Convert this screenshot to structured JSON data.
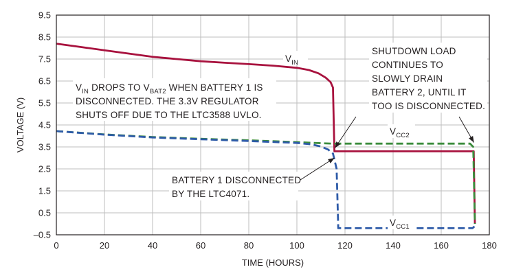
{
  "chart_data": {
    "type": "line",
    "xlabel": "TIME (HOURS)",
    "ylabel": "VOLTAGE (V)",
    "xlim": [
      0,
      180
    ],
    "ylim": [
      -0.5,
      9.5
    ],
    "x_ticks": [
      0,
      20,
      40,
      60,
      80,
      100,
      120,
      140,
      160,
      180
    ],
    "y_ticks": [
      -0.5,
      0.5,
      1.5,
      2.5,
      3.5,
      4.5,
      5.5,
      6.5,
      7.5,
      8.5,
      9.5
    ],
    "y_tick_labels": [
      "–0.5",
      "0.5",
      "1.5",
      "2.5",
      "3.5",
      "4.5",
      "5.5",
      "6.5",
      "7.5",
      "8.5",
      "9.5"
    ],
    "grid": true,
    "series": [
      {
        "name": "VIN",
        "label_main": "V",
        "label_sub": "IN",
        "color": "#a8123e",
        "style": "solid",
        "points": [
          [
            0,
            8.2
          ],
          [
            10,
            8.05
          ],
          [
            20,
            7.9
          ],
          [
            30,
            7.75
          ],
          [
            40,
            7.6
          ],
          [
            50,
            7.5
          ],
          [
            60,
            7.4
          ],
          [
            70,
            7.33
          ],
          [
            80,
            7.27
          ],
          [
            90,
            7.2
          ],
          [
            100,
            7.1
          ],
          [
            105,
            7.0
          ],
          [
            109,
            6.85
          ],
          [
            112,
            6.65
          ],
          [
            114,
            6.45
          ],
          [
            115,
            6.2
          ],
          [
            115.6,
            3.3
          ],
          [
            116,
            3.3
          ],
          [
            130,
            3.3
          ],
          [
            150,
            3.3
          ],
          [
            173.5,
            3.3
          ],
          [
            174,
            0.0
          ]
        ]
      },
      {
        "name": "VCC2",
        "label_main": "V",
        "label_sub": "CC2",
        "color": "#3b8c3c",
        "style": "dashed",
        "points": [
          [
            0,
            4.22
          ],
          [
            20,
            4.07
          ],
          [
            40,
            3.95
          ],
          [
            60,
            3.87
          ],
          [
            80,
            3.8
          ],
          [
            100,
            3.72
          ],
          [
            110,
            3.67
          ],
          [
            115,
            3.65
          ],
          [
            130,
            3.65
          ],
          [
            150,
            3.65
          ],
          [
            172,
            3.65
          ],
          [
            173.3,
            3.5
          ],
          [
            174,
            0.0
          ]
        ]
      },
      {
        "name": "VCC1",
        "label_main": "V",
        "label_sub": "CC1",
        "color": "#2e5ba8",
        "style": "dashed",
        "points": [
          [
            0,
            4.22
          ],
          [
            20,
            4.06
          ],
          [
            40,
            3.93
          ],
          [
            60,
            3.85
          ],
          [
            80,
            3.77
          ],
          [
            100,
            3.68
          ],
          [
            106,
            3.62
          ],
          [
            110,
            3.52
          ],
          [
            113,
            3.38
          ],
          [
            115,
            3.2
          ],
          [
            116.5,
            2.5
          ],
          [
            117.2,
            -0.2
          ],
          [
            117.5,
            -0.2
          ],
          [
            140,
            -0.2
          ],
          [
            173,
            -0.2
          ],
          [
            174,
            -0.1
          ]
        ]
      }
    ],
    "annotations": [
      {
        "id": "vin-drop",
        "lines": [
          [
            {
              "t": "V"
            },
            {
              "t": "IN",
              "sub": true
            },
            {
              "t": " DROPS TO V"
            },
            {
              "t": "BAT2",
              "sub": true
            },
            {
              "t": " WHEN BATTERY 1 IS"
            }
          ],
          [
            {
              "t": "DISCONNECTED. THE 3.3V REGULATOR"
            }
          ],
          [
            {
              "t": "SHUTS OFF DUE TO THE LTC3588 UVLO."
            }
          ]
        ]
      },
      {
        "id": "shutdown-load",
        "lines": [
          [
            {
              "t": "SHUTDOWN LOAD"
            }
          ],
          [
            {
              "t": "CONTINUES TO"
            }
          ],
          [
            {
              "t": "SLOWLY DRAIN"
            }
          ],
          [
            {
              "t": "BATTERY 2, UNTIL IT"
            }
          ],
          [
            {
              "t": "TOO IS DISCONNECTED."
            }
          ]
        ]
      },
      {
        "id": "battery1-disconnected",
        "lines": [
          [
            {
              "t": "BATTERY 1 DISCONNECTED"
            }
          ],
          [
            {
              "t": "BY THE LTC4071."
            }
          ]
        ]
      }
    ]
  }
}
